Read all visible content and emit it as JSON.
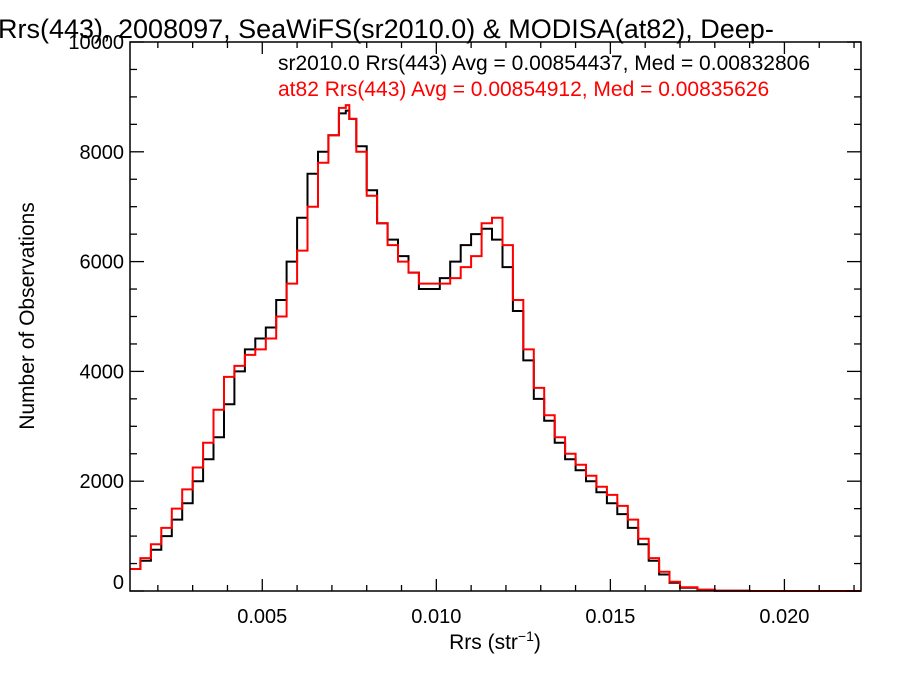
{
  "chart_data": {
    "type": "line",
    "title": "Rrs(443), 2008097, SeaWiFS(sr2010.0) & MODISA(at82), Deep-",
    "xlabel_main": "Rrs (str",
    "xlabel_sup": "−1",
    "xlabel_close": ")",
    "ylabel": "Number of Observations",
    "xlim": [
      0.0012,
      0.0222
    ],
    "ylim": [
      0,
      10000
    ],
    "x_ticks": [
      {
        "value": 0.005,
        "label": "0.005"
      },
      {
        "value": 0.01,
        "label": "0.010"
      },
      {
        "value": 0.015,
        "label": "0.015"
      },
      {
        "value": 0.02,
        "label": "0.020"
      }
    ],
    "y_ticks": [
      {
        "value": 0,
        "label": "0"
      },
      {
        "value": 2000,
        "label": "2000"
      },
      {
        "value": 4000,
        "label": "4000"
      },
      {
        "value": 6000,
        "label": "6000"
      },
      {
        "value": 8000,
        "label": "8000"
      },
      {
        "value": 10000,
        "label": "10000"
      }
    ],
    "legend": [
      {
        "text": "sr2010.0 Rrs(443) Avg = 0.00854437, Med = 0.00832806",
        "color": "#000000"
      },
      {
        "text": "at82 Rrs(443) Avg = 0.00854912, Med = 0.00835626",
        "color": "#ff0000"
      }
    ],
    "series": [
      {
        "color": "#000000",
        "x": [
          0.0012,
          0.0015,
          0.0018,
          0.0021,
          0.0024,
          0.0027,
          0.003,
          0.0033,
          0.0036,
          0.0039,
          0.0042,
          0.0045,
          0.0048,
          0.0051,
          0.0054,
          0.0057,
          0.006,
          0.0063,
          0.0066,
          0.0069,
          0.0072,
          0.0074,
          0.0075,
          0.0077,
          0.008,
          0.0083,
          0.0086,
          0.0089,
          0.0092,
          0.0095,
          0.0098,
          0.0101,
          0.0104,
          0.0107,
          0.011,
          0.0113,
          0.0116,
          0.0119,
          0.0122,
          0.0125,
          0.0128,
          0.0131,
          0.0134,
          0.0137,
          0.014,
          0.0143,
          0.0146,
          0.0149,
          0.0152,
          0.0155,
          0.0158,
          0.0161,
          0.0164,
          0.0167,
          0.017,
          0.0175,
          0.018,
          0.019,
          0.02,
          0.0222
        ],
        "y": [
          400,
          550,
          750,
          1000,
          1300,
          1600,
          2000,
          2400,
          2800,
          3400,
          4000,
          4400,
          4600,
          4800,
          5300,
          6000,
          6800,
          7600,
          8000,
          8300,
          8700,
          8750,
          8600,
          8100,
          7300,
          6700,
          6400,
          6100,
          5800,
          5500,
          5500,
          5700,
          6000,
          6300,
          6500,
          6600,
          6400,
          5900,
          5100,
          4200,
          3500,
          3100,
          2700,
          2400,
          2200,
          2000,
          1800,
          1600,
          1400,
          1150,
          850,
          550,
          300,
          150,
          60,
          20,
          5,
          0,
          0,
          0
        ]
      },
      {
        "color": "#ff0000",
        "x": [
          0.0012,
          0.0015,
          0.0018,
          0.0021,
          0.0024,
          0.0027,
          0.003,
          0.0033,
          0.0036,
          0.0039,
          0.0042,
          0.0045,
          0.0048,
          0.0051,
          0.0054,
          0.0057,
          0.006,
          0.0063,
          0.0066,
          0.0069,
          0.0072,
          0.0074,
          0.0075,
          0.0077,
          0.008,
          0.0083,
          0.0086,
          0.0089,
          0.0092,
          0.0095,
          0.0098,
          0.0101,
          0.0104,
          0.0107,
          0.011,
          0.0113,
          0.0116,
          0.0119,
          0.0122,
          0.0125,
          0.0128,
          0.0131,
          0.0134,
          0.0137,
          0.014,
          0.0143,
          0.0146,
          0.0149,
          0.0152,
          0.0155,
          0.0158,
          0.0161,
          0.0164,
          0.0167,
          0.017,
          0.0175,
          0.018,
          0.019,
          0.02,
          0.0222
        ],
        "y": [
          400,
          600,
          850,
          1150,
          1500,
          1850,
          2250,
          2700,
          3300,
          3900,
          4100,
          4300,
          4400,
          4600,
          5000,
          5600,
          6200,
          7000,
          7800,
          8300,
          8800,
          8850,
          8600,
          8000,
          7200,
          6700,
          6300,
          6000,
          5800,
          5600,
          5600,
          5600,
          5700,
          5900,
          6100,
          6700,
          6800,
          6300,
          5300,
          4400,
          3700,
          3200,
          2800,
          2500,
          2300,
          2100,
          1900,
          1750,
          1550,
          1300,
          950,
          600,
          350,
          170,
          70,
          25,
          5,
          0,
          0,
          0
        ]
      }
    ],
    "grid": false
  }
}
